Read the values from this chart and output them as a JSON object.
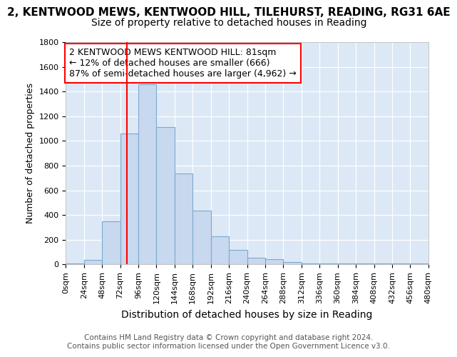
{
  "title": "2, KENTWOOD MEWS, KENTWOOD HILL, TILEHURST, READING, RG31 6AE",
  "subtitle": "Size of property relative to detached houses in Reading",
  "xlabel": "Distribution of detached houses by size in Reading",
  "ylabel": "Number of detached properties",
  "footer_line1": "Contains HM Land Registry data © Crown copyright and database right 2024.",
  "footer_line2": "Contains public sector information licensed under the Open Government Licence v3.0.",
  "bin_edges": [
    0,
    24,
    48,
    72,
    96,
    120,
    144,
    168,
    192,
    216,
    240,
    264,
    288,
    312,
    336,
    360,
    384,
    408,
    432,
    456,
    480
  ],
  "bar_heights": [
    10,
    35,
    350,
    1060,
    1460,
    1110,
    735,
    435,
    225,
    115,
    55,
    45,
    20,
    10,
    5,
    5,
    5,
    5,
    5,
    5
  ],
  "bar_color": "#c8d8ee",
  "bar_edge_color": "#7aaad0",
  "bar_edge_width": 0.8,
  "vline_x": 81,
  "vline_color": "red",
  "vline_linewidth": 1.5,
  "annotation_text_line1": "2 KENTWOOD MEWS KENTWOOD HILL: 81sqm",
  "annotation_text_line2": "← 12% of detached houses are smaller (666)",
  "annotation_text_line3": "87% of semi-detached houses are larger (4,962) →",
  "annotation_box_color": "white",
  "annotation_box_edge_color": "red",
  "annotation_fontsize": 9,
  "bg_color": "#ffffff",
  "plot_bg_color": "#dce8f5",
  "ylim": [
    0,
    1800
  ],
  "xlim": [
    0,
    480
  ],
  "title_fontsize": 11,
  "subtitle_fontsize": 10,
  "xlabel_fontsize": 10,
  "ylabel_fontsize": 9,
  "tick_fontsize": 8,
  "footer_fontsize": 7.5,
  "yticks": [
    0,
    200,
    400,
    600,
    800,
    1000,
    1200,
    1400,
    1600,
    1800
  ]
}
